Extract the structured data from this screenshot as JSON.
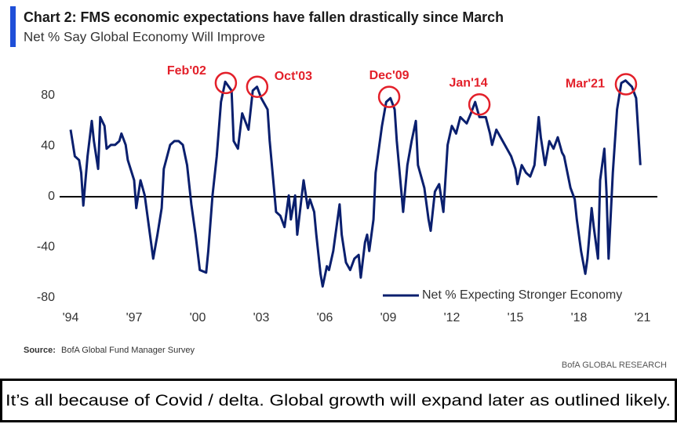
{
  "chart_data": {
    "type": "line",
    "title": "Chart 2: FMS economic expectations have fallen drastically since March",
    "subtitle": "Net % Say Global Economy Will Improve",
    "source_label": "Source:",
    "source": "BofA Global Fund Manager Survey",
    "brand": "BofA GLOBAL RESEARCH",
    "caption": "It’s all because of Covid / delta. Global growth will expand later as outlined likely.",
    "legend": "lower right",
    "zero_line": true,
    "x": [
      1994.0,
      1994.2,
      1994.4,
      1994.5,
      1994.6,
      1994.8,
      1995.0,
      1995.1,
      1995.3,
      1995.4,
      1995.6,
      1995.7,
      1995.9,
      1996.1,
      1996.3,
      1996.4,
      1996.6,
      1996.7,
      1997.0,
      1997.1,
      1997.3,
      1997.5,
      1997.7,
      1997.9,
      1998.1,
      1998.3,
      1998.4,
      1998.7,
      1998.9,
      1999.1,
      1999.3,
      1999.5,
      1999.7,
      1999.9,
      2000.1,
      2000.4,
      2000.5,
      2000.7,
      2000.9,
      2001.1,
      2001.3,
      2001.6,
      2001.7,
      2001.9,
      2002.1,
      2002.4,
      2002.6,
      2002.8,
      2003.0,
      2003.3,
      2003.4,
      2003.6,
      2003.7,
      2003.9,
      2004.1,
      2004.3,
      2004.4,
      2004.6,
      2004.7,
      2005.0,
      2005.2,
      2005.3,
      2005.5,
      2005.6,
      2005.8,
      2005.9,
      2006.1,
      2006.2,
      2006.4,
      2006.7,
      2006.8,
      2007.0,
      2007.2,
      2007.4,
      2007.6,
      2007.7,
      2007.9,
      2008.0,
      2008.1,
      2008.3,
      2008.4,
      2008.7,
      2008.9,
      2009.1,
      2009.3,
      2009.4,
      2009.6,
      2009.7,
      2009.9,
      2010.1,
      2010.3,
      2010.4,
      2010.7,
      2010.9,
      2011.0,
      2011.2,
      2011.4,
      2011.6,
      2011.8,
      2012.0,
      2012.2,
      2012.4,
      2012.7,
      2012.9,
      2013.1,
      2013.3,
      2013.6,
      2013.8,
      2013.9,
      2014.1,
      2014.4,
      2014.6,
      2014.8,
      2015.0,
      2015.1,
      2015.3,
      2015.5,
      2015.7,
      2015.9,
      2016.1,
      2016.2,
      2016.4,
      2016.6,
      2016.8,
      2017.0,
      2017.2,
      2017.3,
      2017.6,
      2017.8,
      2017.9,
      2018.1,
      2018.3,
      2018.4,
      2018.6,
      2018.7,
      2018.9,
      2019.0,
      2019.2,
      2019.3,
      2019.4,
      2019.6,
      2019.8,
      2020.0,
      2020.2,
      2020.5,
      2020.7,
      2020.9
    ],
    "series": [
      {
        "name": "Net % Expecting Stronger Economy",
        "color": "#0a1f6e",
        "values": [
          53,
          32,
          29,
          19,
          -7,
          32,
          60,
          44,
          22,
          63,
          56,
          38,
          41,
          41,
          44,
          50,
          41,
          29,
          13,
          -9,
          13,
          1,
          -24,
          -49,
          -30,
          -9,
          22,
          41,
          44,
          44,
          41,
          25,
          -6,
          -30,
          -58,
          -60,
          -43,
          1,
          32,
          75,
          91,
          84,
          44,
          38,
          66,
          53,
          84,
          87,
          78,
          69,
          44,
          7,
          -12,
          -15,
          -24,
          1,
          -18,
          1,
          -30,
          13,
          -9,
          -2,
          -12,
          -30,
          -61,
          -71,
          -55,
          -58,
          -43,
          -6,
          -30,
          -52,
          -58,
          -49,
          -46,
          -64,
          -36,
          -30,
          -43,
          -18,
          19,
          56,
          75,
          78,
          69,
          44,
          7,
          -12,
          25,
          44,
          60,
          25,
          7,
          -18,
          -27,
          4,
          10,
          -12,
          41,
          56,
          50,
          63,
          58,
          66,
          75,
          63,
          63,
          50,
          41,
          53,
          44,
          38,
          32,
          22,
          10,
          25,
          19,
          16,
          25,
          63,
          47,
          25,
          44,
          38,
          47,
          35,
          32,
          7,
          -2,
          -18,
          -43,
          -61,
          -49,
          -9,
          -24,
          -49,
          13,
          38,
          4,
          -49,
          19,
          69,
          90,
          92,
          87,
          78,
          25
        ]
      }
    ],
    "annotations": [
      {
        "label": "Feb'02",
        "x": 2001.33,
        "y": 90
      },
      {
        "label": "Oct'03",
        "x": 2002.81,
        "y": 87
      },
      {
        "label": "Dec'09",
        "x": 2009.04,
        "y": 79
      },
      {
        "label": "Jan'14",
        "x": 2013.3,
        "y": 73
      },
      {
        "label": "Mar'21",
        "x": 2020.22,
        "y": 89
      }
    ],
    "annotation_color": "#e3202a",
    "xlim": [
      1994,
      2021
    ],
    "xticks": [
      {
        "value": 1994,
        "label": "'94"
      },
      {
        "value": 1997,
        "label": "'97"
      },
      {
        "value": 2000,
        "label": "'00"
      },
      {
        "value": 2003,
        "label": "'03"
      },
      {
        "value": 2006,
        "label": "'06"
      },
      {
        "value": 2009,
        "label": "'09"
      },
      {
        "value": 2012,
        "label": "'12"
      },
      {
        "value": 2015,
        "label": "'15"
      },
      {
        "value": 2018,
        "label": "'18"
      },
      {
        "value": 2021,
        "label": "'21"
      }
    ],
    "ylim": [
      -80,
      80
    ],
    "yticks": [
      -80,
      -40,
      0,
      40,
      80
    ]
  }
}
